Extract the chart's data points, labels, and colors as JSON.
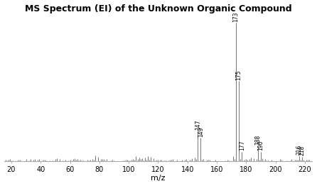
{
  "title": "MS Spectrum (EI) of the Unknown Organic Compound",
  "xlabel": "m/z",
  "xlim": [
    15,
    225
  ],
  "ylim": [
    0,
    105
  ],
  "xticks": [
    20,
    40,
    60,
    80,
    100,
    120,
    140,
    160,
    180,
    200,
    220
  ],
  "background_color": "#ffffff",
  "line_color": "#606060",
  "title_fontsize": 9,
  "title_fontweight": "bold",
  "labeled_peaks": [
    {
      "mz": 147,
      "intensity": 22,
      "label": "147"
    },
    {
      "mz": 149,
      "intensity": 17,
      "label": "149"
    },
    {
      "mz": 173,
      "intensity": 100,
      "label": "173"
    },
    {
      "mz": 175,
      "intensity": 58,
      "label": "175"
    },
    {
      "mz": 177,
      "intensity": 7,
      "label": "177"
    },
    {
      "mz": 188,
      "intensity": 11,
      "label": "188"
    },
    {
      "mz": 190,
      "intensity": 7,
      "label": "190"
    },
    {
      "mz": 216,
      "intensity": 4,
      "label": "216"
    },
    {
      "mz": 218,
      "intensity": 3.5,
      "label": "218"
    }
  ],
  "extra_peaks": [
    {
      "mz": 77,
      "intensity": 4.5
    },
    {
      "mz": 79,
      "intensity": 3.5
    },
    {
      "mz": 105,
      "intensity": 4
    },
    {
      "mz": 107,
      "intensity": 3
    },
    {
      "mz": 109,
      "intensity": 2.5
    },
    {
      "mz": 111,
      "intensity": 3
    },
    {
      "mz": 113,
      "intensity": 4
    },
    {
      "mz": 115,
      "intensity": 3.5
    },
    {
      "mz": 117,
      "intensity": 2.5
    },
    {
      "mz": 51,
      "intensity": 2.5
    },
    {
      "mz": 53,
      "intensity": 2
    },
    {
      "mz": 63,
      "intensity": 2.5
    },
    {
      "mz": 65,
      "intensity": 2
    },
    {
      "mz": 145,
      "intensity": 3
    },
    {
      "mz": 143,
      "intensity": 2.5
    },
    {
      "mz": 171,
      "intensity": 4
    },
    {
      "mz": 183,
      "intensity": 3
    },
    {
      "mz": 185,
      "intensity": 2.5
    },
    {
      "mz": 191,
      "intensity": 2.5
    },
    {
      "mz": 193,
      "intensity": 2
    }
  ],
  "noise_seed": 7,
  "base_noise_max": 1.8,
  "noise_threshold": 0.7
}
